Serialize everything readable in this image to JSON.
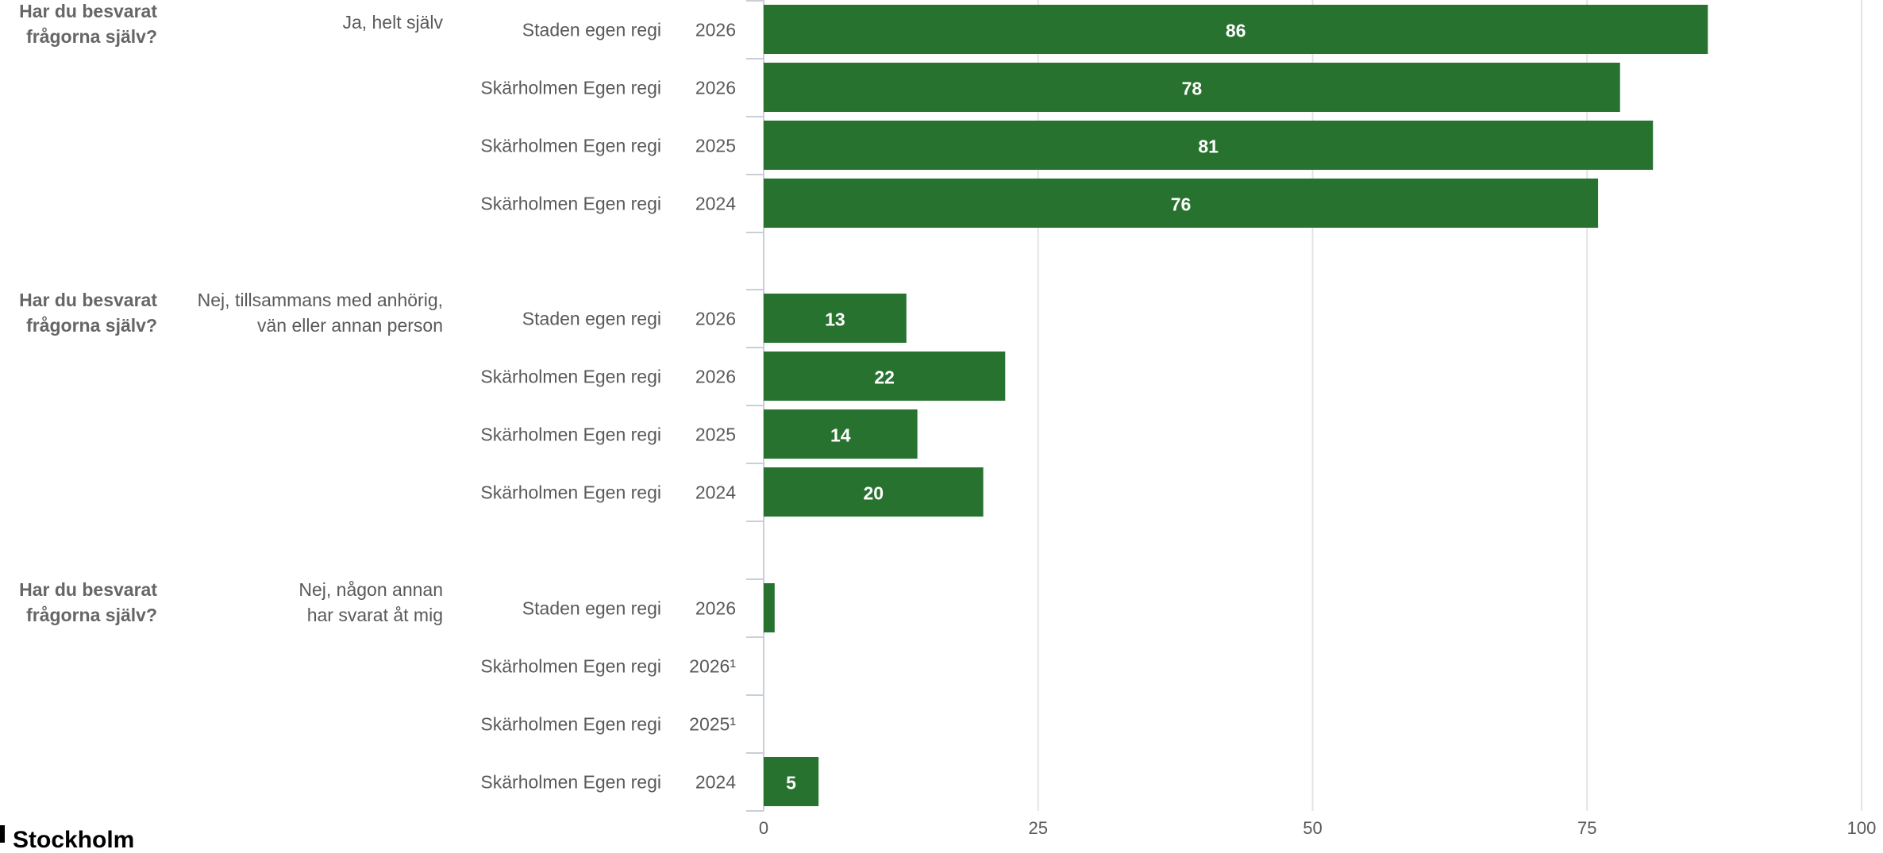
{
  "chart_data": {
    "type": "bar",
    "orientation": "horizontal",
    "xlim": [
      0,
      100
    ],
    "x_ticks": [
      "0",
      "25",
      "50",
      "75",
      "100"
    ],
    "grid": true,
    "bar_color": "#27722f",
    "groups": [
      {
        "question": "Har du besvarat frågorna själv?",
        "answer": "Ja, helt själv",
        "rows": [
          {
            "unit": "Staden egen regi",
            "year": "2026",
            "value": 86
          },
          {
            "unit": "Skärholmen Egen regi",
            "year": "2026",
            "value": 78
          },
          {
            "unit": "Skärholmen Egen regi",
            "year": "2025",
            "value": 81
          },
          {
            "unit": "Skärholmen Egen regi",
            "year": "2024",
            "value": 76
          }
        ]
      },
      {
        "question": "Har du besvarat frågorna själv?",
        "answer": "Nej, tillsammans med anhörig, vän eller annan person",
        "rows": [
          {
            "unit": "Staden egen regi",
            "year": "2026",
            "value": 13
          },
          {
            "unit": "Skärholmen Egen regi",
            "year": "2026",
            "value": 22
          },
          {
            "unit": "Skärholmen Egen regi",
            "year": "2025",
            "value": 14
          },
          {
            "unit": "Skärholmen Egen regi",
            "year": "2024",
            "value": 20
          }
        ]
      },
      {
        "question": "Har du besvarat frågorna själv?",
        "answer": "Nej, någon annan har svarat åt mig",
        "rows": [
          {
            "unit": "Staden egen regi",
            "year": "2026",
            "value": 1
          },
          {
            "unit": "Skärholmen Egen regi",
            "year": "2026¹",
            "value": null
          },
          {
            "unit": "Skärholmen Egen regi",
            "year": "2025¹",
            "value": null
          },
          {
            "unit": "Skärholmen Egen regi",
            "year": "2024",
            "value": 5
          }
        ]
      }
    ]
  },
  "logo": {
    "text": "Stockholm"
  }
}
